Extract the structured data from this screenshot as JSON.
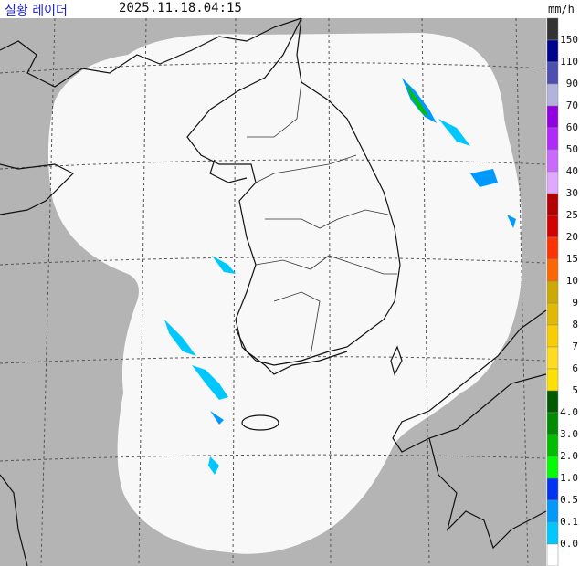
{
  "header": {
    "title": "실황 레이더",
    "timestamp": "2025.11.18.04:15",
    "unit": "mm/h"
  },
  "legend": {
    "labels": [
      "150",
      "110",
      "90",
      "70",
      "60",
      "50",
      "40",
      "30",
      "25",
      "20",
      "15",
      "10",
      "9",
      "8",
      "7",
      "6",
      "5",
      "4.0",
      "3.0",
      "2.0",
      "1.0",
      "0.5",
      "0.1",
      "0.0"
    ],
    "colors": [
      "#333333",
      "#000390",
      "#4c4eb1",
      "#b3b4de",
      "#9300e4",
      "#b229ff",
      "#c969ff",
      "#e0a9ff",
      "#b40000",
      "#d20000",
      "#ff3200",
      "#ff6600",
      "#ccaa00",
      "#e0b900",
      "#f9cd00",
      "#ffdc1f",
      "#ffe100",
      "#005a00",
      "#008c00",
      "#00be00",
      "#00ff00",
      "#0033f5",
      "#0099ff",
      "#00c8ff",
      "#ffffff"
    ]
  }
}
